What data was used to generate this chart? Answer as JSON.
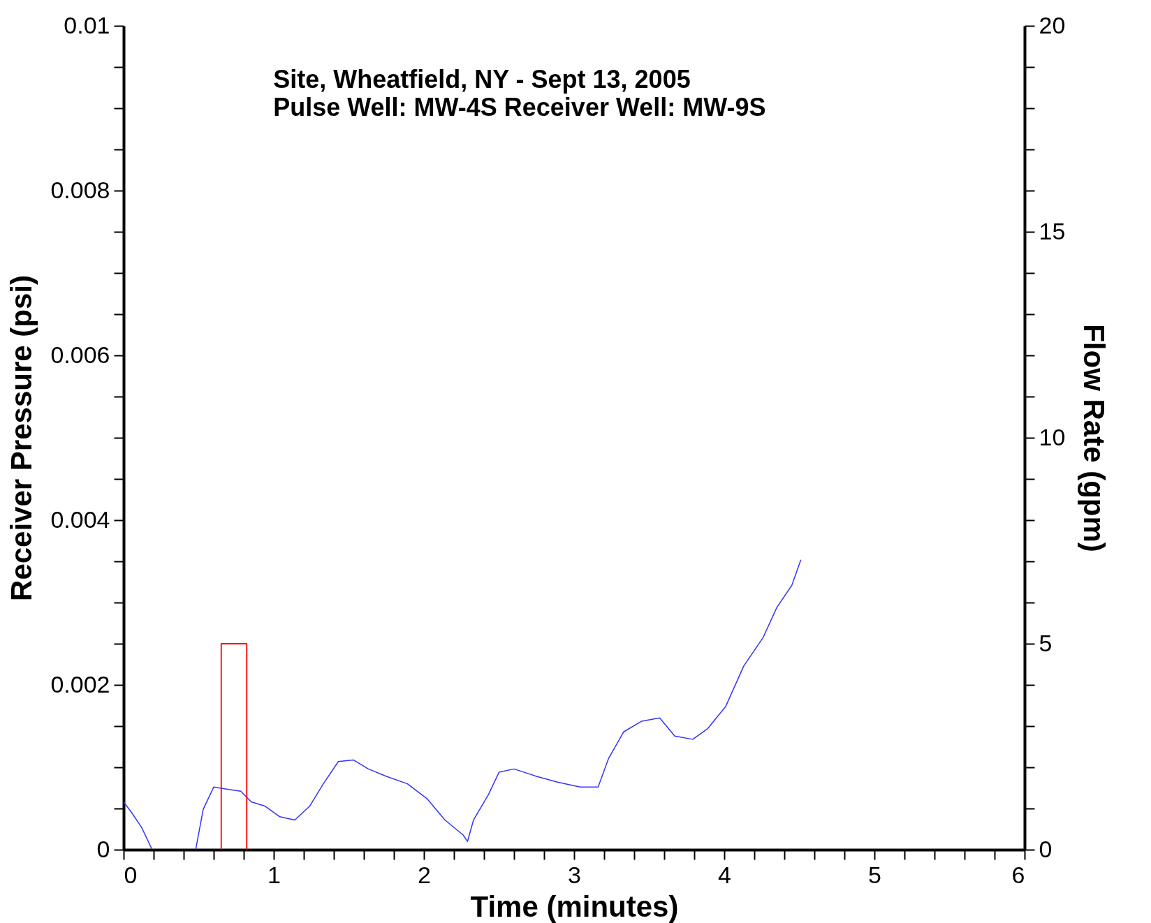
{
  "chart_data": {
    "type": "line",
    "title": "Site, Wheatfield, NY - Sept 13, 2005",
    "subtitle": "Pulse Well: MW-4S  Receiver Well: MW-9S",
    "xlabel": "Time (minutes)",
    "ylabel": "Receiver Pressure (psi)",
    "y2label": "Flow Rate (gpm)",
    "xlim": [
      0,
      6
    ],
    "ylim": [
      0,
      0.01
    ],
    "y2lim": [
      0,
      20
    ],
    "xticks": [
      0,
      {
        "value": 0.2,
        "label": null
      },
      {
        "value": 0.4,
        "label": null
      },
      {
        "value": 0.6,
        "label": null
      },
      {
        "value": 0.8,
        "label": null
      },
      1,
      {
        "value": 1.2,
        "label": null
      },
      {
        "value": 1.4,
        "label": null
      },
      {
        "value": 1.6,
        "label": null
      },
      {
        "value": 1.8,
        "label": null
      },
      2,
      {
        "value": 2.2,
        "label": null
      },
      {
        "value": 2.4,
        "label": null
      },
      {
        "value": 2.6,
        "label": null
      },
      {
        "value": 2.8,
        "label": null
      },
      3,
      {
        "value": 3.2,
        "label": null
      },
      {
        "value": 3.4,
        "label": null
      },
      {
        "value": 3.6,
        "label": null
      },
      {
        "value": 3.8,
        "label": null
      },
      4,
      {
        "value": 4.2,
        "label": null
      },
      {
        "value": 4.4,
        "label": null
      },
      {
        "value": 4.6,
        "label": null
      },
      {
        "value": 4.8,
        "label": null
      },
      5,
      {
        "value": 5.2,
        "label": null
      },
      {
        "value": 5.4,
        "label": null
      },
      {
        "value": 5.6,
        "label": null
      },
      {
        "value": 5.8,
        "label": null
      },
      6
    ],
    "yticks": [
      0,
      {
        "value": 0.0005,
        "label": null
      },
      {
        "value": 0.001,
        "label": null
      },
      {
        "value": 0.0015,
        "label": null
      },
      0.002,
      {
        "value": 0.0025,
        "label": null
      },
      {
        "value": 0.003,
        "label": null
      },
      {
        "value": 0.0035,
        "label": null
      },
      0.004,
      {
        "value": 0.0045,
        "label": null
      },
      {
        "value": 0.005,
        "label": null
      },
      {
        "value": 0.0055,
        "label": null
      },
      0.006,
      {
        "value": 0.0065,
        "label": null
      },
      {
        "value": 0.007,
        "label": null
      },
      {
        "value": 0.0075,
        "label": null
      },
      0.008,
      {
        "value": 0.0085,
        "label": null
      },
      {
        "value": 0.009,
        "label": null
      },
      {
        "value": 0.0095,
        "label": null
      },
      0.01
    ],
    "y2ticks": [
      0,
      {
        "value": 1,
        "label": null
      },
      {
        "value": 2,
        "label": null
      },
      {
        "value": 3,
        "label": null
      },
      {
        "value": 4,
        "label": null
      },
      5,
      {
        "value": 6,
        "label": null
      },
      {
        "value": 7,
        "label": null
      },
      {
        "value": 8,
        "label": null
      },
      {
        "value": 9,
        "label": null
      },
      10,
      {
        "value": 11,
        "label": null
      },
      {
        "value": 12,
        "label": null
      },
      {
        "value": 13,
        "label": null
      },
      {
        "value": 14,
        "label": null
      },
      15,
      {
        "value": 16,
        "label": null
      },
      {
        "value": 17,
        "label": null
      },
      {
        "value": 18,
        "label": null
      },
      {
        "value": 19,
        "label": null
      },
      20
    ],
    "grid": false,
    "marker": "none",
    "line_style": "solid",
    "series": [
      {
        "color": "#3333ff",
        "x": [
          0,
          0.05,
          0.12,
          0.19,
          0.3,
          0.48,
          0.53,
          0.6,
          0.7,
          0.78,
          0.85,
          0.94,
          1.04,
          1.14,
          1.24,
          1.33,
          1.43,
          1.53,
          1.63,
          1.75,
          1.89,
          2.02,
          2.14,
          2.26,
          2.29,
          2.33,
          2.43,
          2.5,
          2.6,
          2.75,
          2.89,
          3.04,
          3.16,
          3.23,
          3.33,
          3.45,
          3.57,
          3.67,
          3.79,
          3.89,
          4.01,
          4.13,
          4.26,
          4.35,
          4.45,
          4.51
        ],
        "values": [
          0.00058,
          0.00046,
          0.00027,
          0,
          null,
          0,
          0.00049,
          0.00076,
          0.00073,
          0.00071,
          0.00058,
          0.00053,
          0.0004,
          0.00036,
          0.00053,
          0.0008,
          0.00107,
          0.00109,
          0.00098,
          0.00089,
          0.0008,
          0.00062,
          0.00036,
          0.00018,
          0.0001,
          0.00036,
          0.00067,
          0.00094,
          0.00098,
          0.00089,
          0.00082,
          0.00076,
          0.00076,
          0.00111,
          0.00143,
          0.00156,
          0.0016,
          0.00138,
          0.00134,
          0.00147,
          0.00174,
          0.00223,
          0.00258,
          0.00294,
          0.00321,
          0.00352
        ]
      },
      {
        "color": "#ff0000",
        "axis": "y2",
        "x": [
          0.65,
          0.65,
          0.82,
          0.82
        ],
        "values": [
          0,
          5,
          5,
          0
        ]
      }
    ]
  }
}
